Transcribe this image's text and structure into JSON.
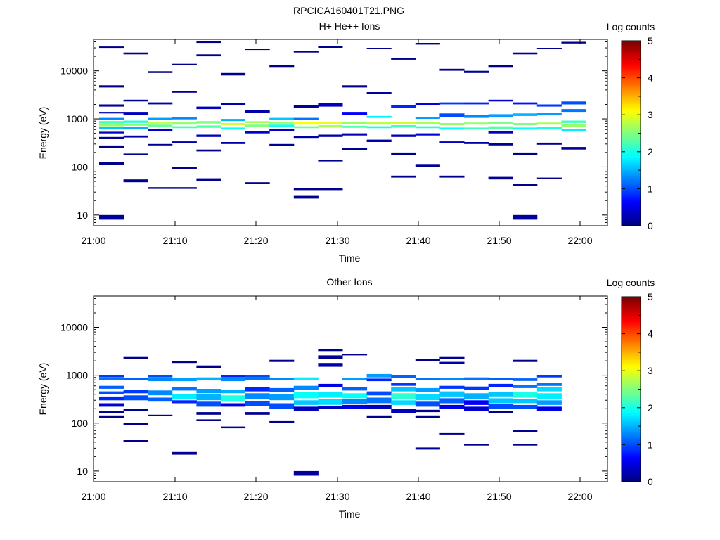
{
  "figure_title": "RPCICA160401T21.PNG",
  "chart_data": [
    {
      "type": "heatmap",
      "title": "H+ He++ Ions",
      "xlabel": "Time",
      "ylabel": "Energy (eV)",
      "ylog": true,
      "ylim": [
        6,
        45000
      ],
      "x_ticks": [
        "21:00",
        "21:10",
        "21:20",
        "21:30",
        "21:40",
        "21:50",
        "22:00"
      ],
      "y_ticks": [
        "10",
        "100",
        "1000",
        "10000"
      ],
      "colorbar": {
        "label": "Log counts",
        "ticks": [
          "0",
          "1",
          "2",
          "3",
          "4",
          "5"
        ],
        "range": [
          0,
          5
        ]
      },
      "time_bins": 20,
      "time_start": "21:00",
      "time_step_min": 3.1,
      "bins": [
        [
          8,
          10,
          0.15
        ],
        [
          110,
          125,
          0.05
        ],
        [
          250,
          280,
          0.05
        ],
        [
          380,
          420,
          0.1
        ],
        [
          500,
          540,
          0.3
        ],
        [
          620,
          680,
          1.6
        ],
        [
          700,
          780,
          2.6
        ],
        [
          800,
          900,
          2.2
        ],
        [
          950,
          1050,
          1.3
        ],
        [
          1300,
          1400,
          0.2
        ],
        [
          1800,
          2000,
          0.1
        ],
        [
          4500,
          5000,
          0.05
        ],
        [
          30000,
          32000,
          0.05
        ],
        [
          48,
          55,
          0.05
        ],
        [
          175,
          190,
          0.1
        ],
        [
          410,
          450,
          0.2
        ],
        [
          620,
          680,
          1.5
        ],
        [
          720,
          780,
          2.5
        ],
        [
          820,
          920,
          2.1
        ],
        [
          1200,
          1400,
          0.3
        ],
        [
          2300,
          2500,
          0.1
        ],
        [
          22000,
          24000,
          0.05
        ],
        [
          35,
          38,
          0.05
        ],
        [
          280,
          300,
          0.1
        ],
        [
          560,
          620,
          0.4
        ],
        [
          680,
          760,
          2.4
        ],
        [
          800,
          880,
          2.8
        ],
        [
          950,
          1050,
          1.4
        ],
        [
          2000,
          2200,
          0.2
        ],
        [
          9000,
          9800,
          0.05
        ],
        [
          35,
          38,
          0.05
        ],
        [
          90,
          100,
          0.05
        ],
        [
          310,
          340,
          0.2
        ],
        [
          640,
          700,
          2.2
        ],
        [
          760,
          860,
          2.6
        ],
        [
          980,
          1080,
          1.3
        ],
        [
          3500,
          3800,
          0.1
        ],
        [
          13000,
          14000,
          0.05
        ],
        [
          50,
          58,
          0.1
        ],
        [
          210,
          230,
          0.05
        ],
        [
          420,
          470,
          0.3
        ],
        [
          650,
          730,
          2.3
        ],
        [
          800,
          900,
          2.5
        ],
        [
          1600,
          1800,
          0.3
        ],
        [
          20000,
          22000,
          0.05
        ],
        [
          38000,
          41000,
          0.05
        ],
        [
          300,
          330,
          0.2
        ],
        [
          600,
          660,
          1.9
        ],
        [
          740,
          820,
          2.9
        ],
        [
          900,
          1000,
          1.5
        ],
        [
          1900,
          2100,
          0.2
        ],
        [
          8000,
          9000,
          0.05
        ],
        [
          44,
          48,
          0.05
        ],
        [
          500,
          560,
          0.4
        ],
        [
          680,
          760,
          2.5
        ],
        [
          820,
          900,
          2.7
        ],
        [
          1350,
          1500,
          0.2
        ],
        [
          27000,
          29000,
          0.05
        ],
        [
          270,
          300,
          0.1
        ],
        [
          560,
          620,
          0.3
        ],
        [
          680,
          760,
          2.0
        ],
        [
          800,
          880,
          2.6
        ],
        [
          950,
          1050,
          1.6
        ],
        [
          12000,
          13000,
          0.05
        ],
        [
          22,
          25,
          0.05
        ],
        [
          33,
          36,
          0.05
        ],
        [
          400,
          440,
          0.2
        ],
        [
          640,
          700,
          2.4
        ],
        [
          760,
          860,
          3.1
        ],
        [
          950,
          1050,
          1.2
        ],
        [
          1700,
          1900,
          0.1
        ],
        [
          24000,
          26000,
          0.05
        ],
        [
          33,
          36,
          0.05
        ],
        [
          130,
          140,
          0.05
        ],
        [
          420,
          470,
          0.2
        ],
        [
          660,
          740,
          2.7
        ],
        [
          780,
          880,
          3.0
        ],
        [
          1800,
          2100,
          0.3
        ],
        [
          30000,
          33000,
          0.05
        ],
        [
          220,
          250,
          0.1
        ],
        [
          450,
          500,
          0.3
        ],
        [
          650,
          720,
          2.3
        ],
        [
          780,
          860,
          2.6
        ],
        [
          1200,
          1400,
          0.6
        ],
        [
          4500,
          5000,
          0.05
        ],
        [
          330,
          370,
          0.2
        ],
        [
          640,
          700,
          2.0
        ],
        [
          760,
          860,
          2.8
        ],
        [
          1050,
          1150,
          1.8
        ],
        [
          3300,
          3600,
          0.1
        ],
        [
          28000,
          30000,
          0.05
        ],
        [
          60,
          66,
          0.05
        ],
        [
          180,
          200,
          0.05
        ],
        [
          420,
          470,
          0.3
        ],
        [
          660,
          740,
          2.2
        ],
        [
          780,
          860,
          2.9
        ],
        [
          1700,
          1900,
          0.8
        ],
        [
          17000,
          18500,
          0.05
        ],
        [
          100,
          115,
          0.1
        ],
        [
          450,
          500,
          0.4
        ],
        [
          640,
          700,
          2.1
        ],
        [
          780,
          860,
          2.7
        ],
        [
          1000,
          1100,
          1.4
        ],
        [
          1900,
          2100,
          0.5
        ],
        [
          35000,
          38000,
          0.05
        ],
        [
          60,
          66,
          0.05
        ],
        [
          310,
          340,
          0.3
        ],
        [
          600,
          660,
          1.9
        ],
        [
          740,
          820,
          2.6
        ],
        [
          1100,
          1300,
          1.0
        ],
        [
          2000,
          2200,
          0.9
        ],
        [
          10000,
          11000,
          0.1
        ],
        [
          300,
          330,
          0.2
        ],
        [
          600,
          660,
          2.2
        ],
        [
          760,
          840,
          2.6
        ],
        [
          1050,
          1200,
          1.3
        ],
        [
          2000,
          2200,
          0.8
        ],
        [
          9000,
          10000,
          0.1
        ],
        [
          55,
          62,
          0.1
        ],
        [
          280,
          310,
          0.1
        ],
        [
          500,
          560,
          0.3
        ],
        [
          620,
          700,
          2.3
        ],
        [
          780,
          860,
          2.5
        ],
        [
          1100,
          1250,
          1.4
        ],
        [
          2300,
          2500,
          0.4
        ],
        [
          12000,
          13000,
          0.05
        ],
        [
          8,
          10,
          0.15
        ],
        [
          40,
          44,
          0.05
        ],
        [
          180,
          200,
          0.05
        ],
        [
          600,
          660,
          1.9
        ],
        [
          740,
          820,
          2.5
        ],
        [
          1150,
          1300,
          1.5
        ],
        [
          2000,
          2200,
          0.7
        ],
        [
          22000,
          24000,
          0.05
        ],
        [
          56,
          60,
          0.05
        ],
        [
          290,
          320,
          0.1
        ],
        [
          620,
          690,
          2.0
        ],
        [
          760,
          840,
          2.7
        ],
        [
          1200,
          1350,
          1.4
        ],
        [
          1800,
          2000,
          0.9
        ],
        [
          28000,
          30000,
          0.05
        ],
        [
          230,
          260,
          0.1
        ],
        [
          560,
          620,
          1.8
        ],
        [
          680,
          780,
          2.6
        ],
        [
          820,
          920,
          2.2
        ],
        [
          1400,
          1600,
          1.2
        ],
        [
          2000,
          2300,
          1.0
        ],
        [
          37000,
          40000,
          0.05
        ]
      ],
      "bin_columns": [
        13,
        9,
        8,
        8,
        8,
        6,
        6,
        6,
        8,
        7,
        6,
        6,
        7,
        7,
        7,
        6,
        8,
        8,
        7,
        7
      ]
    },
    {
      "type": "heatmap",
      "title": "Other Ions",
      "xlabel": "Time",
      "ylabel": "Energy (eV)",
      "ylog": true,
      "ylim": [
        6,
        45000
      ],
      "x_ticks": [
        "21:00",
        "21:10",
        "21:20",
        "21:30",
        "21:40",
        "21:50",
        "22:00"
      ],
      "y_ticks": [
        "10",
        "100",
        "1000",
        "10000"
      ],
      "colorbar": {
        "label": "Log counts",
        "ticks": [
          "0",
          "1",
          "2",
          "3",
          "4",
          "5"
        ],
        "range": [
          0,
          5
        ]
      },
      "time_bins": 20,
      "time_start": "21:00",
      "time_step_min": 3.1,
      "bins": [
        [
          130,
          145,
          0.05
        ],
        [
          160,
          180,
          0.1
        ],
        [
          220,
          260,
          0.4
        ],
        [
          300,
          360,
          0.8
        ],
        [
          400,
          460,
          1.0
        ],
        [
          520,
          600,
          1.1
        ],
        [
          780,
          880,
          1.2
        ],
        [
          900,
          1000,
          0.9
        ],
        [
          40,
          44,
          0.05
        ],
        [
          90,
          100,
          0.05
        ],
        [
          180,
          200,
          0.1
        ],
        [
          300,
          380,
          1.0
        ],
        [
          420,
          500,
          0.9
        ],
        [
          780,
          880,
          1.1
        ],
        [
          2200,
          2400,
          0.05
        ],
        [
          140,
          150,
          0.05
        ],
        [
          280,
          340,
          1.1
        ],
        [
          380,
          480,
          1.3
        ],
        [
          750,
          880,
          1.3
        ],
        [
          900,
          1000,
          1.0
        ],
        [
          22,
          25,
          0.1
        ],
        [
          260,
          300,
          0.8
        ],
        [
          320,
          400,
          1.8
        ],
        [
          480,
          560,
          1.2
        ],
        [
          750,
          880,
          1.4
        ],
        [
          1800,
          2000,
          0.05
        ],
        [
          110,
          120,
          0.05
        ],
        [
          150,
          170,
          0.05
        ],
        [
          220,
          280,
          1.0
        ],
        [
          300,
          400,
          1.5
        ],
        [
          420,
          520,
          1.4
        ],
        [
          800,
          900,
          1.5
        ],
        [
          1400,
          1600,
          0.05
        ],
        [
          78,
          85,
          0.05
        ],
        [
          220,
          260,
          0.5
        ],
        [
          280,
          380,
          2.0
        ],
        [
          420,
          500,
          1.5
        ],
        [
          750,
          880,
          1.3
        ],
        [
          900,
          1000,
          0.8
        ],
        [
          150,
          170,
          0.05
        ],
        [
          230,
          290,
          1.0
        ],
        [
          320,
          420,
          1.3
        ],
        [
          460,
          560,
          0.8
        ],
        [
          780,
          900,
          1.2
        ],
        [
          900,
          1000,
          1.0
        ],
        [
          100,
          110,
          0.05
        ],
        [
          200,
          260,
          1.0
        ],
        [
          300,
          400,
          1.4
        ],
        [
          440,
          540,
          1.1
        ],
        [
          800,
          880,
          1.3
        ],
        [
          1900,
          2100,
          0.05
        ],
        [
          8,
          10,
          0.15
        ],
        [
          180,
          220,
          0.3
        ],
        [
          240,
          300,
          1.6
        ],
        [
          330,
          440,
          1.9
        ],
        [
          500,
          600,
          1.3
        ],
        [
          800,
          900,
          1.8
        ],
        [
          200,
          230,
          0.3
        ],
        [
          240,
          320,
          1.7
        ],
        [
          340,
          440,
          1.8
        ],
        [
          560,
          660,
          0.5
        ],
        [
          1500,
          1800,
          0.2
        ],
        [
          2200,
          2600,
          0.1
        ],
        [
          3200,
          3500,
          0.05
        ],
        [
          200,
          240,
          0.5
        ],
        [
          250,
          320,
          1.3
        ],
        [
          330,
          420,
          1.9
        ],
        [
          480,
          560,
          1.1
        ],
        [
          780,
          880,
          1.4
        ],
        [
          2600,
          2800,
          0.05
        ],
        [
          130,
          145,
          0.05
        ],
        [
          200,
          240,
          0.3
        ],
        [
          260,
          340,
          1.2
        ],
        [
          380,
          460,
          1.0
        ],
        [
          750,
          850,
          0.8
        ],
        [
          900,
          1060,
          1.4
        ],
        [
          160,
          200,
          0.3
        ],
        [
          240,
          300,
          1.7
        ],
        [
          320,
          420,
          2.1
        ],
        [
          460,
          560,
          1.6
        ],
        [
          600,
          680,
          0.9
        ],
        [
          880,
          1000,
          1.1
        ],
        [
          28,
          31,
          0.1
        ],
        [
          130,
          145,
          0.05
        ],
        [
          170,
          190,
          0.1
        ],
        [
          220,
          280,
          1.0
        ],
        [
          300,
          400,
          1.7
        ],
        [
          440,
          540,
          1.4
        ],
        [
          780,
          880,
          1.2
        ],
        [
          2000,
          2200,
          0.05
        ],
        [
          58,
          62,
          0.05
        ],
        [
          200,
          240,
          0.5
        ],
        [
          260,
          330,
          1.1
        ],
        [
          360,
          460,
          1.6
        ],
        [
          520,
          600,
          0.9
        ],
        [
          780,
          880,
          1.3
        ],
        [
          1700,
          1900,
          0.2
        ],
        [
          2200,
          2400,
          0.1
        ],
        [
          34,
          37,
          0.05
        ],
        [
          180,
          220,
          0.4
        ],
        [
          240,
          300,
          0.6
        ],
        [
          320,
          420,
          1.5
        ],
        [
          500,
          580,
          0.9
        ],
        [
          780,
          900,
          1.2
        ],
        [
          160,
          180,
          0.05
        ],
        [
          200,
          250,
          1.0
        ],
        [
          260,
          330,
          1.6
        ],
        [
          360,
          440,
          1.6
        ],
        [
          560,
          660,
          0.8
        ],
        [
          780,
          880,
          1.1
        ],
        [
          34,
          37,
          0.05
        ],
        [
          66,
          72,
          0.1
        ],
        [
          200,
          240,
          1.0
        ],
        [
          260,
          320,
          1.6
        ],
        [
          340,
          440,
          2.0
        ],
        [
          540,
          620,
          1.2
        ],
        [
          760,
          860,
          1.1
        ],
        [
          1900,
          2100,
          0.05
        ],
        [
          180,
          220,
          0.5
        ],
        [
          240,
          300,
          1.4
        ],
        [
          320,
          420,
          1.8
        ],
        [
          460,
          560,
          1.7
        ],
        [
          600,
          700,
          1.2
        ],
        [
          900,
          1000,
          0.9
        ]
      ],
      "bin_columns": [
        8,
        7,
        5,
        6,
        7,
        6,
        6,
        6,
        6,
        7,
        6,
        6,
        6,
        8,
        8,
        6,
        6,
        8,
        6,
        0
      ]
    }
  ]
}
